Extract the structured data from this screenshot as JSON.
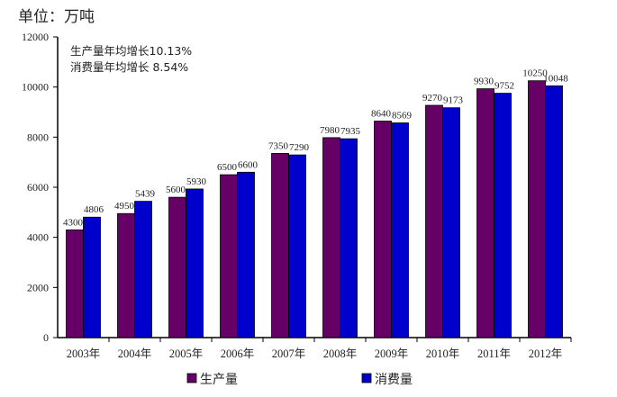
{
  "chart_data": {
    "type": "bar",
    "unit_label": "单位：万吨",
    "annotations": [
      "生产量年均增长10.13%",
      "消费量年均增长 8.54%"
    ],
    "categories": [
      "2003年",
      "2004年",
      "2005年",
      "2006年",
      "2007年",
      "2008年",
      "2009年",
      "2010年",
      "2011年",
      "2012年"
    ],
    "series": [
      {
        "name": "生产量",
        "color": "#660066",
        "values": [
          4300,
          4950,
          5600,
          6500,
          7350,
          7980,
          8640,
          9270,
          9930,
          10250
        ]
      },
      {
        "name": "消费量",
        "color": "#0000cc",
        "values": [
          4806,
          5439,
          5930,
          6600,
          7290,
          7935,
          8569,
          9173,
          9752,
          10048
        ]
      }
    ],
    "ylim": [
      0,
      12000
    ],
    "yticks": [
      0,
      2000,
      4000,
      6000,
      8000,
      10000,
      12000
    ],
    "grid": false,
    "legend": "bottom"
  }
}
